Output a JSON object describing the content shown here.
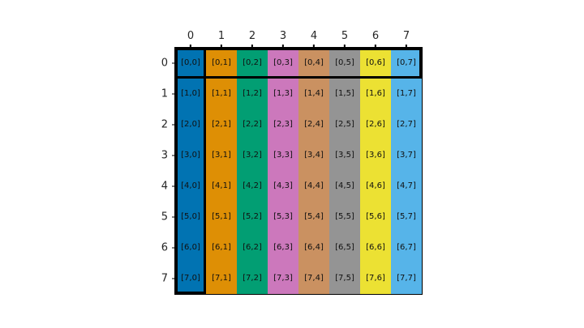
{
  "colors": {
    "background": "#ffffff",
    "spine": "#000000",
    "tick": "#000000",
    "tick_text": "#262626",
    "cell_text": "#111111",
    "highlight_border": "#000000"
  },
  "chart_data": {
    "type": "heatmap",
    "title": "",
    "xlabel": "",
    "ylabel": "",
    "grid": "off",
    "legend": "none",
    "x_tick_labels": [
      "0",
      "1",
      "2",
      "3",
      "4",
      "5",
      "6",
      "7"
    ],
    "y_tick_labels": [
      "0",
      "1",
      "2",
      "3",
      "4",
      "5",
      "6",
      "7"
    ],
    "column_colors": [
      "#0173b2",
      "#de8f05",
      "#029e73",
      "#cc78bc",
      "#ca9161",
      "#949494",
      "#ece133",
      "#56b4e9"
    ],
    "cell_labels": [
      [
        "[0,0]",
        "[0,1]",
        "[0,2]",
        "[0,3]",
        "[0,4]",
        "[0,5]",
        "[0,6]",
        "[0,7]"
      ],
      [
        "[1,0]",
        "[1,1]",
        "[1,2]",
        "[1,3]",
        "[1,4]",
        "[1,5]",
        "[1,6]",
        "[1,7]"
      ],
      [
        "[2,0]",
        "[2,1]",
        "[2,2]",
        "[2,3]",
        "[2,4]",
        "[2,5]",
        "[2,6]",
        "[2,7]"
      ],
      [
        "[3,0]",
        "[3,1]",
        "[3,2]",
        "[3,3]",
        "[3,4]",
        "[3,5]",
        "[3,6]",
        "[3,7]"
      ],
      [
        "[4,0]",
        "[4,1]",
        "[4,2]",
        "[4,3]",
        "[4,4]",
        "[4,5]",
        "[4,6]",
        "[4,7]"
      ],
      [
        "[5,0]",
        "[5,1]",
        "[5,2]",
        "[5,3]",
        "[5,4]",
        "[5,5]",
        "[5,6]",
        "[5,7]"
      ],
      [
        "[6,0]",
        "[6,1]",
        "[6,2]",
        "[6,3]",
        "[6,4]",
        "[6,5]",
        "[6,6]",
        "[6,7]"
      ],
      [
        "[7,0]",
        "[7,1]",
        "[7,2]",
        "[7,3]",
        "[7,4]",
        "[7,5]",
        "[7,6]",
        "[7,7]"
      ]
    ],
    "highlights": [
      {
        "shape": "rectangle",
        "covers": "row 0",
        "border_color": "#000000"
      },
      {
        "shape": "rectangle",
        "covers": "column 0",
        "border_color": "#000000"
      }
    ]
  }
}
